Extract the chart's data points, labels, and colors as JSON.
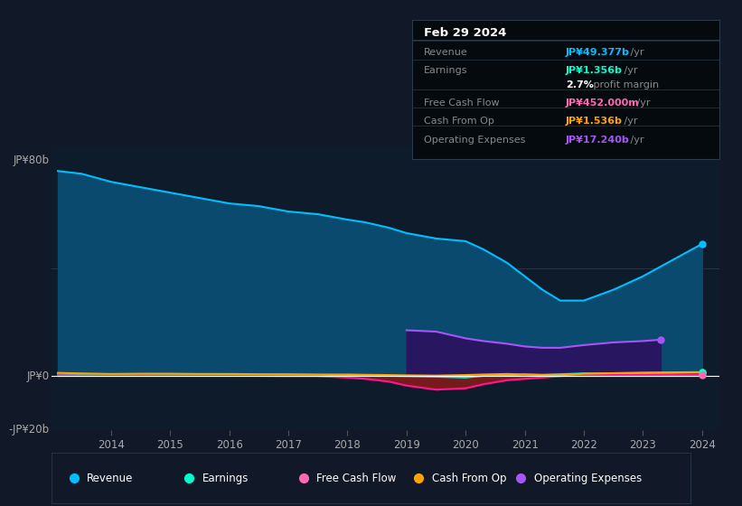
{
  "bg_color": "#111827",
  "plot_bg_color": "#0d1b2a",
  "title_box": {
    "date": "Feb 29 2024",
    "rows": [
      {
        "label": "Revenue",
        "value": "JP¥49.377b",
        "color": "#00bfff",
        "suffix": " /yr"
      },
      {
        "label": "Earnings",
        "value": "JP¥1.356b",
        "color": "#00ffcc",
        "suffix": " /yr"
      },
      {
        "label": "",
        "value": "2.7%",
        "color": "#ffffff",
        "suffix": " profit margin"
      },
      {
        "label": "Free Cash Flow",
        "value": "JP¥452.000m",
        "color": "#ff69b4",
        "suffix": " /yr"
      },
      {
        "label": "Cash From Op",
        "value": "JP¥1.536b",
        "color": "#ffa500",
        "suffix": " /yr"
      },
      {
        "label": "Operating Expenses",
        "value": "JP¥17.240b",
        "color": "#a855f7",
        "suffix": " /yr"
      }
    ]
  },
  "years": [
    2013.1,
    2013.5,
    2014.0,
    2014.5,
    2015.0,
    2015.5,
    2016.0,
    2016.5,
    2017.0,
    2017.5,
    2018.0,
    2018.3,
    2018.7,
    2019.0,
    2019.5,
    2020.0,
    2020.3,
    2020.7,
    2021.0,
    2021.3,
    2021.6,
    2022.0,
    2022.5,
    2023.0,
    2023.5,
    2024.0
  ],
  "revenue": [
    76,
    75,
    72,
    70,
    68,
    66,
    64,
    63,
    61,
    60,
    58,
    57,
    55,
    53,
    51,
    50,
    47,
    42,
    37,
    32,
    28,
    28,
    32,
    37,
    43,
    49
  ],
  "earnings": [
    0.5,
    0.4,
    0.3,
    0.5,
    0.5,
    0.6,
    0.4,
    0.4,
    0.3,
    0.3,
    0.3,
    0.2,
    0.1,
    0.0,
    -0.2,
    -0.5,
    0.1,
    0.3,
    0.6,
    0.5,
    0.7,
    1.0,
    0.9,
    1.1,
    1.2,
    1.4
  ],
  "free_cash_flow": [
    0.3,
    0.2,
    0.2,
    0.3,
    0.2,
    0.2,
    0.1,
    0.1,
    0.0,
    0.0,
    -0.5,
    -1.0,
    -2.0,
    -3.5,
    -5.0,
    -4.5,
    -3.0,
    -1.5,
    -1.0,
    -0.5,
    0.0,
    0.5,
    0.5,
    0.5,
    0.5,
    0.5
  ],
  "cash_from_op": [
    1.2,
    1.0,
    0.8,
    0.9,
    0.9,
    0.8,
    0.8,
    0.7,
    0.7,
    0.6,
    0.6,
    0.5,
    0.4,
    0.3,
    0.2,
    0.4,
    0.6,
    0.8,
    0.6,
    0.4,
    0.3,
    0.9,
    1.1,
    1.3,
    1.4,
    1.5
  ],
  "op_expenses_years": [
    2019.0,
    2019.5,
    2020.0,
    2020.3,
    2020.7,
    2021.0,
    2021.3,
    2021.6,
    2022.0,
    2022.5,
    2023.0,
    2023.3
  ],
  "op_expenses": [
    17.0,
    16.5,
    14.0,
    13.0,
    12.0,
    11.0,
    10.5,
    10.5,
    11.5,
    12.5,
    13.0,
    13.5
  ],
  "ylim": [
    -20,
    85
  ],
  "xlabel_years": [
    2014,
    2015,
    2016,
    2017,
    2018,
    2019,
    2020,
    2021,
    2022,
    2023,
    2024
  ],
  "y_labels": [
    {
      "val": 80,
      "text": "JP¥80b"
    },
    {
      "val": 0,
      "text": "JP¥0"
    },
    {
      "val": -20,
      "text": "-JP¥20b"
    }
  ],
  "legend": [
    {
      "label": "Revenue",
      "color": "#00bfff"
    },
    {
      "label": "Earnings",
      "color": "#00ffcc"
    },
    {
      "label": "Free Cash Flow",
      "color": "#ff69b4"
    },
    {
      "label": "Cash From Op",
      "color": "#ffa500"
    },
    {
      "label": "Operating Expenses",
      "color": "#a855f7"
    }
  ]
}
